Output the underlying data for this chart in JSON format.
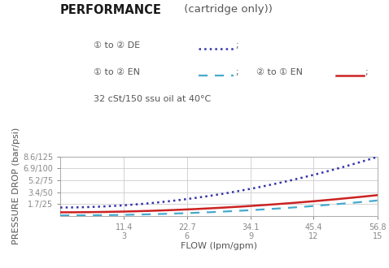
{
  "title_bold": "PERFORMANCE",
  "title_normal": " (cartridge only))",
  "legend_line1_text": "① to ② DE",
  "legend_line2a_text": "① to ② EN",
  "legend_line2b_text": "② to ① EN",
  "legend_line3": "32 cSt/150 ssu oil at 40°C",
  "xlabel": "FLOW (lpm/gpm)",
  "ylabel": "PRESSURE DROP (bar/psi)",
  "xtick_top": [
    "11.4",
    "22.7",
    "34.1",
    "45.4",
    "56.8"
  ],
  "xtick_bot": [
    "3",
    "6",
    "9",
    "12",
    "15"
  ],
  "xtick_vals": [
    11.4,
    22.7,
    34.1,
    45.4,
    56.8
  ],
  "ytick_labels": [
    "1.7/25",
    "3.4/50",
    "5.2/75",
    "6.9/100",
    "8.6/125"
  ],
  "ytick_vals": [
    1.7,
    3.4,
    5.2,
    6.9,
    8.6
  ],
  "xmin": 0,
  "xmax": 56.8,
  "ymin": 0,
  "ymax": 8.6,
  "color_de": "#3333aa",
  "color_en_1to2": "#44aacc",
  "color_en_2to1": "#cc2222",
  "bg_color": "#ffffff",
  "grid_color": "#cccccc",
  "text_color": "#555555",
  "title_color": "#1a1a1a"
}
